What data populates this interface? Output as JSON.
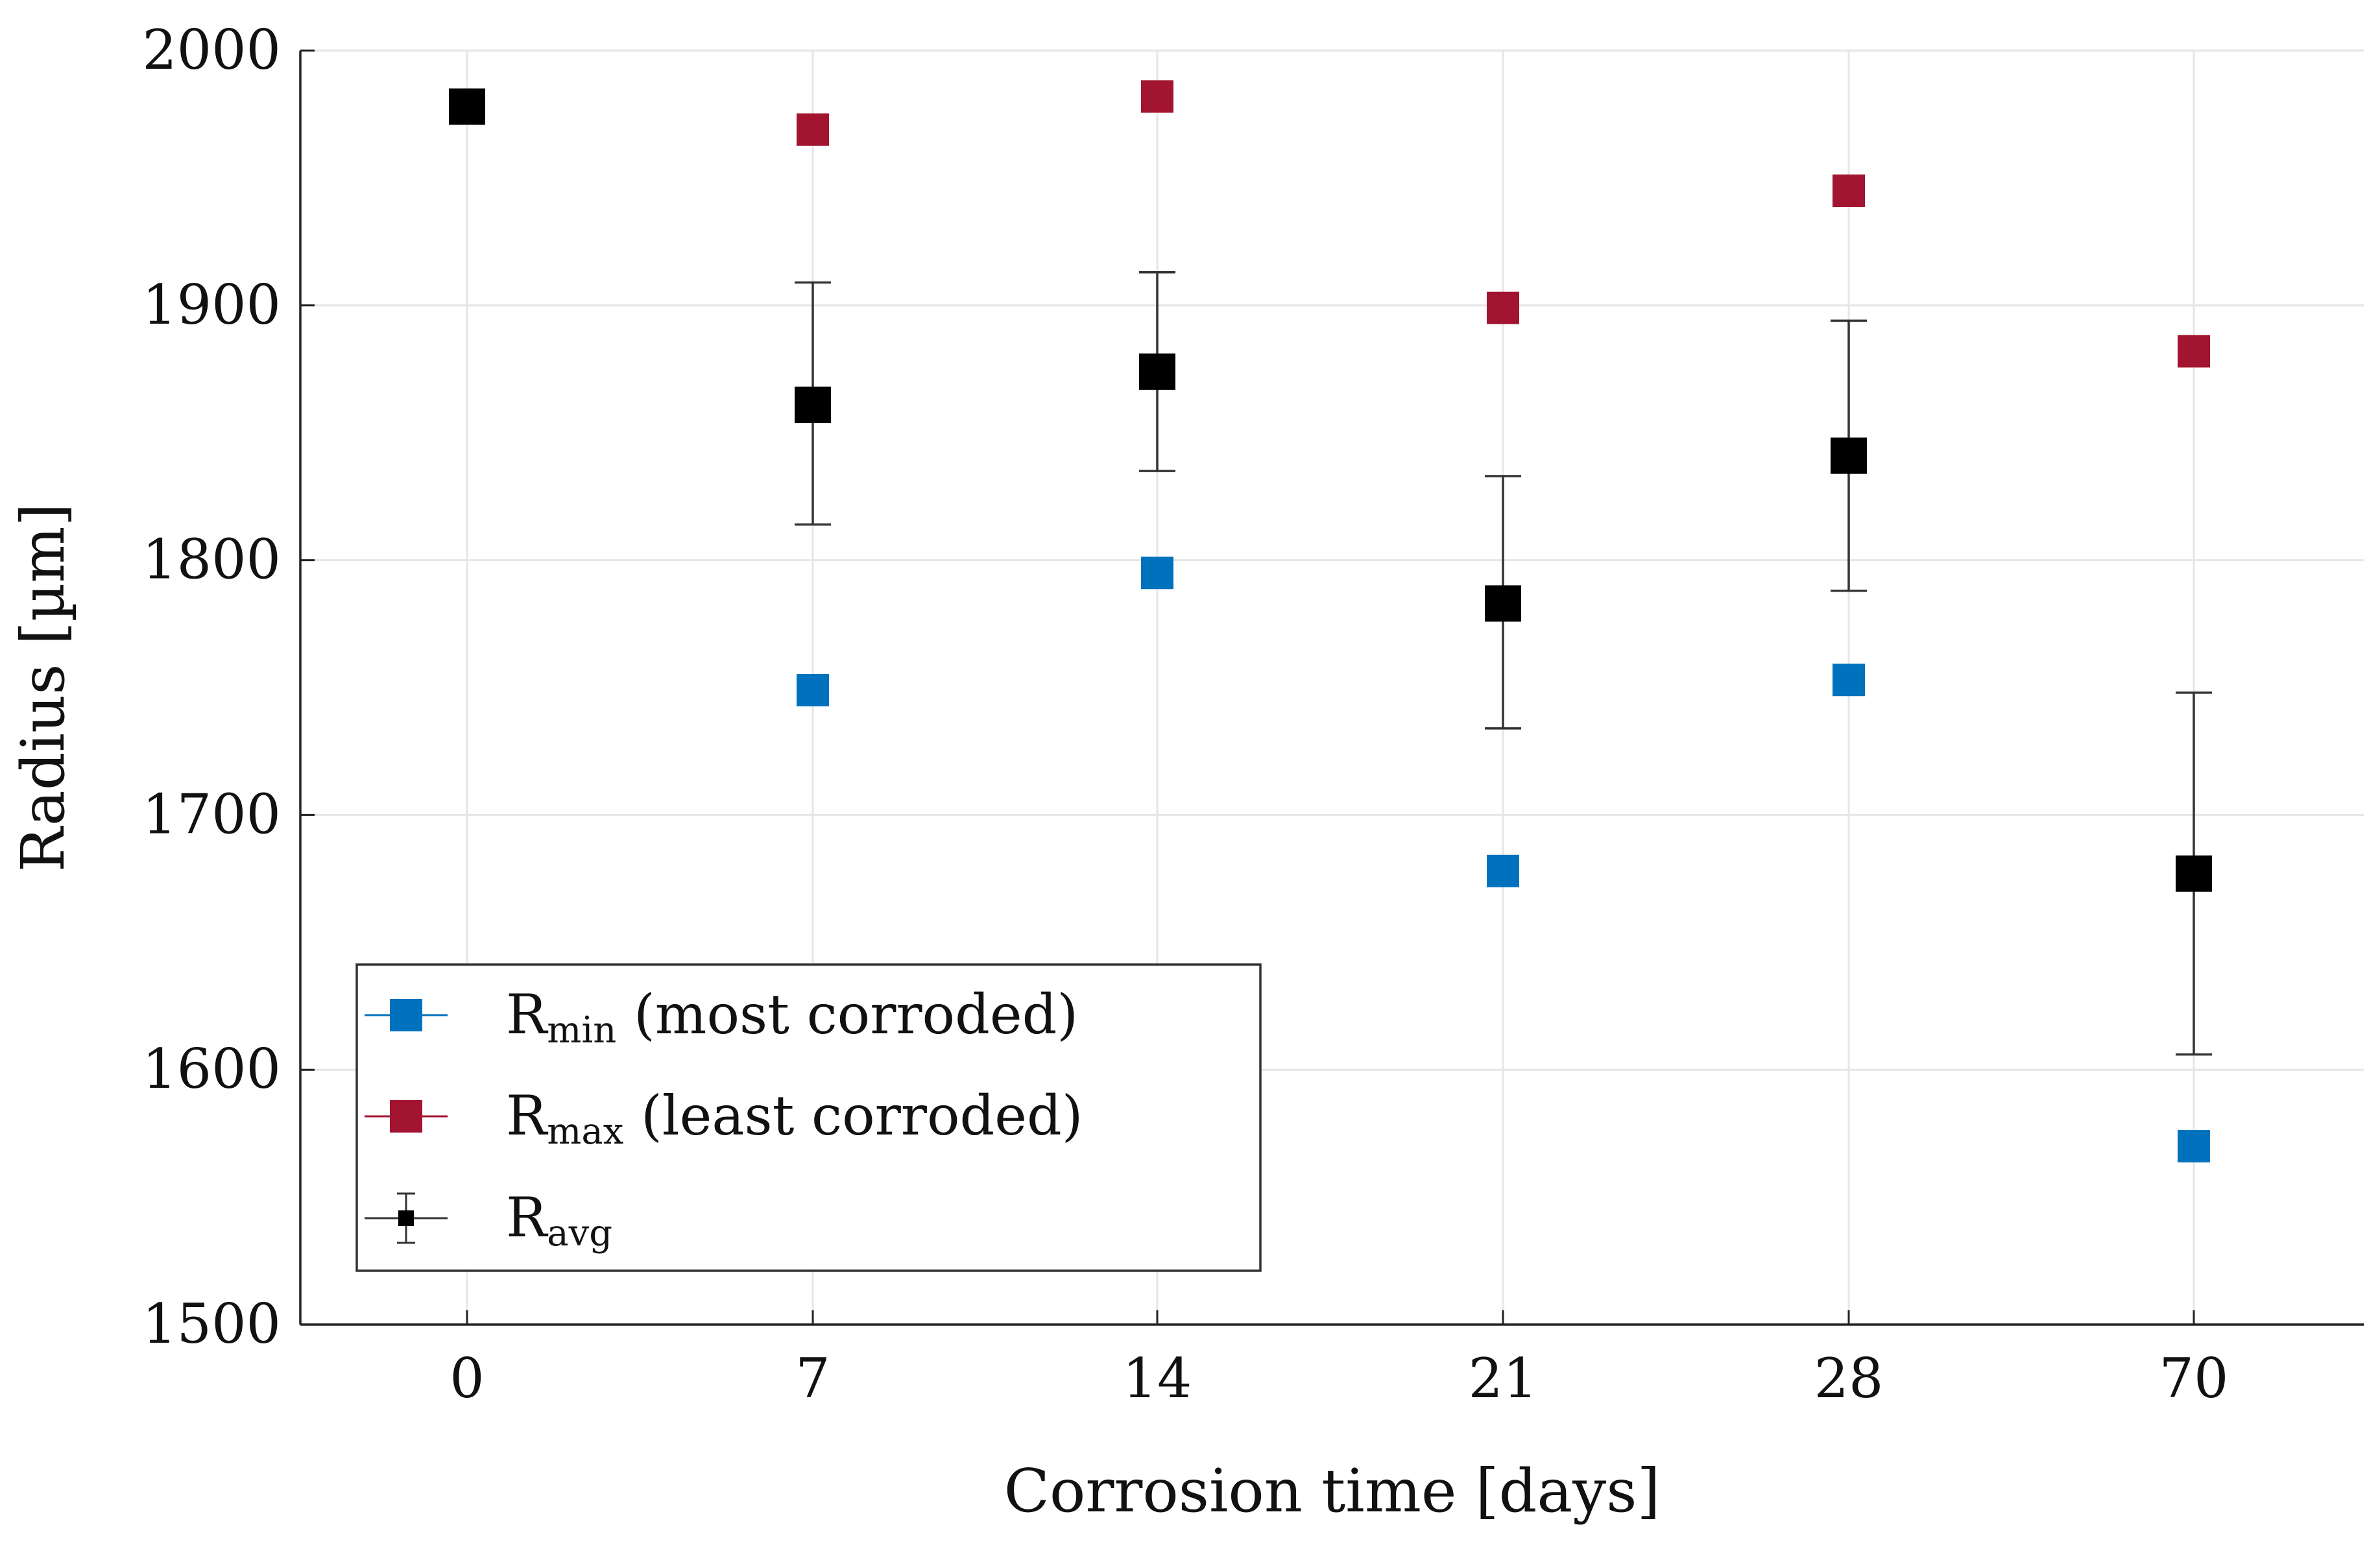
{
  "chart_data": {
    "type": "scatter",
    "title": "",
    "xlabel": "Corrosion time [days]",
    "ylabel": "Radius [µm]",
    "categories": [
      "0",
      "7",
      "14",
      "21",
      "28",
      "70"
    ],
    "ylim": [
      1500,
      2000
    ],
    "yticks": [
      "1500",
      "1600",
      "1700",
      "1800",
      "1900",
      "2000"
    ],
    "grid": true,
    "legend_position": "lower-left",
    "series": [
      {
        "name": "Rmin (most corroded)",
        "label_main": "R",
        "label_sub": "min",
        "label_rest": " (most corroded)",
        "color": "#0072BD",
        "marker": "square",
        "values": [
          null,
          1749,
          1795,
          1678,
          1753,
          1570
        ]
      },
      {
        "name": "Rmax (least corroded)",
        "label_main": "R",
        "label_sub": "max",
        "label_rest": " (least corroded)",
        "color": "#A2142F",
        "marker": "square",
        "values": [
          null,
          1969,
          1982,
          1899,
          1945,
          1882
        ]
      },
      {
        "name": "Ravg",
        "label_main": "R",
        "label_sub": "avg",
        "label_rest": "",
        "color": "#000000",
        "marker": "square",
        "values": [
          1978,
          1861,
          1874,
          1783,
          1841,
          1677
        ],
        "error_low": [
          1974,
          1814,
          1835,
          1734,
          1788,
          1606
        ],
        "error_high": [
          1982,
          1909,
          1913,
          1833,
          1894,
          1748
        ]
      }
    ]
  }
}
